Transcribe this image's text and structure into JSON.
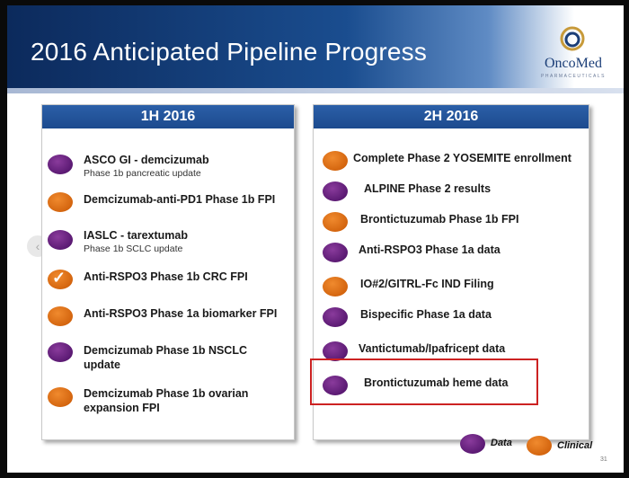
{
  "slide": {
    "title": "2016 Anticipated Pipeline Progress",
    "logo": {
      "name": "OncoMed",
      "subtitle": "PHARMACEUTICALS"
    },
    "page_number": "31",
    "colors": {
      "purple": "#5b1a73",
      "orange": "#d2630d",
      "header_blue": "#1c4a8e",
      "highlight_red": "#cc2222"
    }
  },
  "left_panel": {
    "header": "1H 2016",
    "items": [
      {
        "label": "ASCO GI - demcizumab",
        "sub": "Phase 1b pancreatic update",
        "type": "Data"
      },
      {
        "label": "Demcizumab-anti-PD1 Phase 1b FPI",
        "sub": "",
        "type": "Clinical"
      },
      {
        "label": "IASLC - tarextumab",
        "sub": "Phase 1b SCLC update",
        "type": "Data"
      },
      {
        "label": "Anti-RSPO3 Phase 1b CRC FPI",
        "sub": "",
        "type": "Clinical",
        "completed": true,
        "check": "✓"
      },
      {
        "label": "Anti-RSPO3 Phase 1a  biomarker FPI",
        "sub": "",
        "type": "Clinical"
      },
      {
        "label_line1": "Demcizumab Phase 1b NSCLC",
        "label_line2": "update",
        "type": "Data"
      },
      {
        "label_line1": "Demcizumab Phase 1b ovarian",
        "label_line2": "expansion FPI",
        "type": "Clinical"
      }
    ]
  },
  "right_panel": {
    "header": "2H 2016",
    "items": [
      {
        "label": "Complete Phase 2 YOSEMITE enrollment",
        "type": "Clinical"
      },
      {
        "label": "ALPINE Phase 2 results",
        "type": "Data"
      },
      {
        "label": "Brontictuzumab Phase 1b FPI",
        "type": "Clinical"
      },
      {
        "label": "Anti-RSPO3 Phase 1a data",
        "type": "Data"
      },
      {
        "label": "IO#2/GITRL-Fc IND Filing",
        "type": "Clinical"
      },
      {
        "label": "Bispecific Phase 1a data",
        "type": "Data"
      },
      {
        "label": "Vantictumab/Ipafricept data",
        "type": "Data"
      },
      {
        "label": "Brontictuzumab heme data",
        "type": "Data",
        "highlighted": true
      }
    ]
  },
  "legend": {
    "data_label": "Data",
    "clinical_label": "Clinical"
  },
  "nav": {
    "prev_icon": "‹"
  }
}
